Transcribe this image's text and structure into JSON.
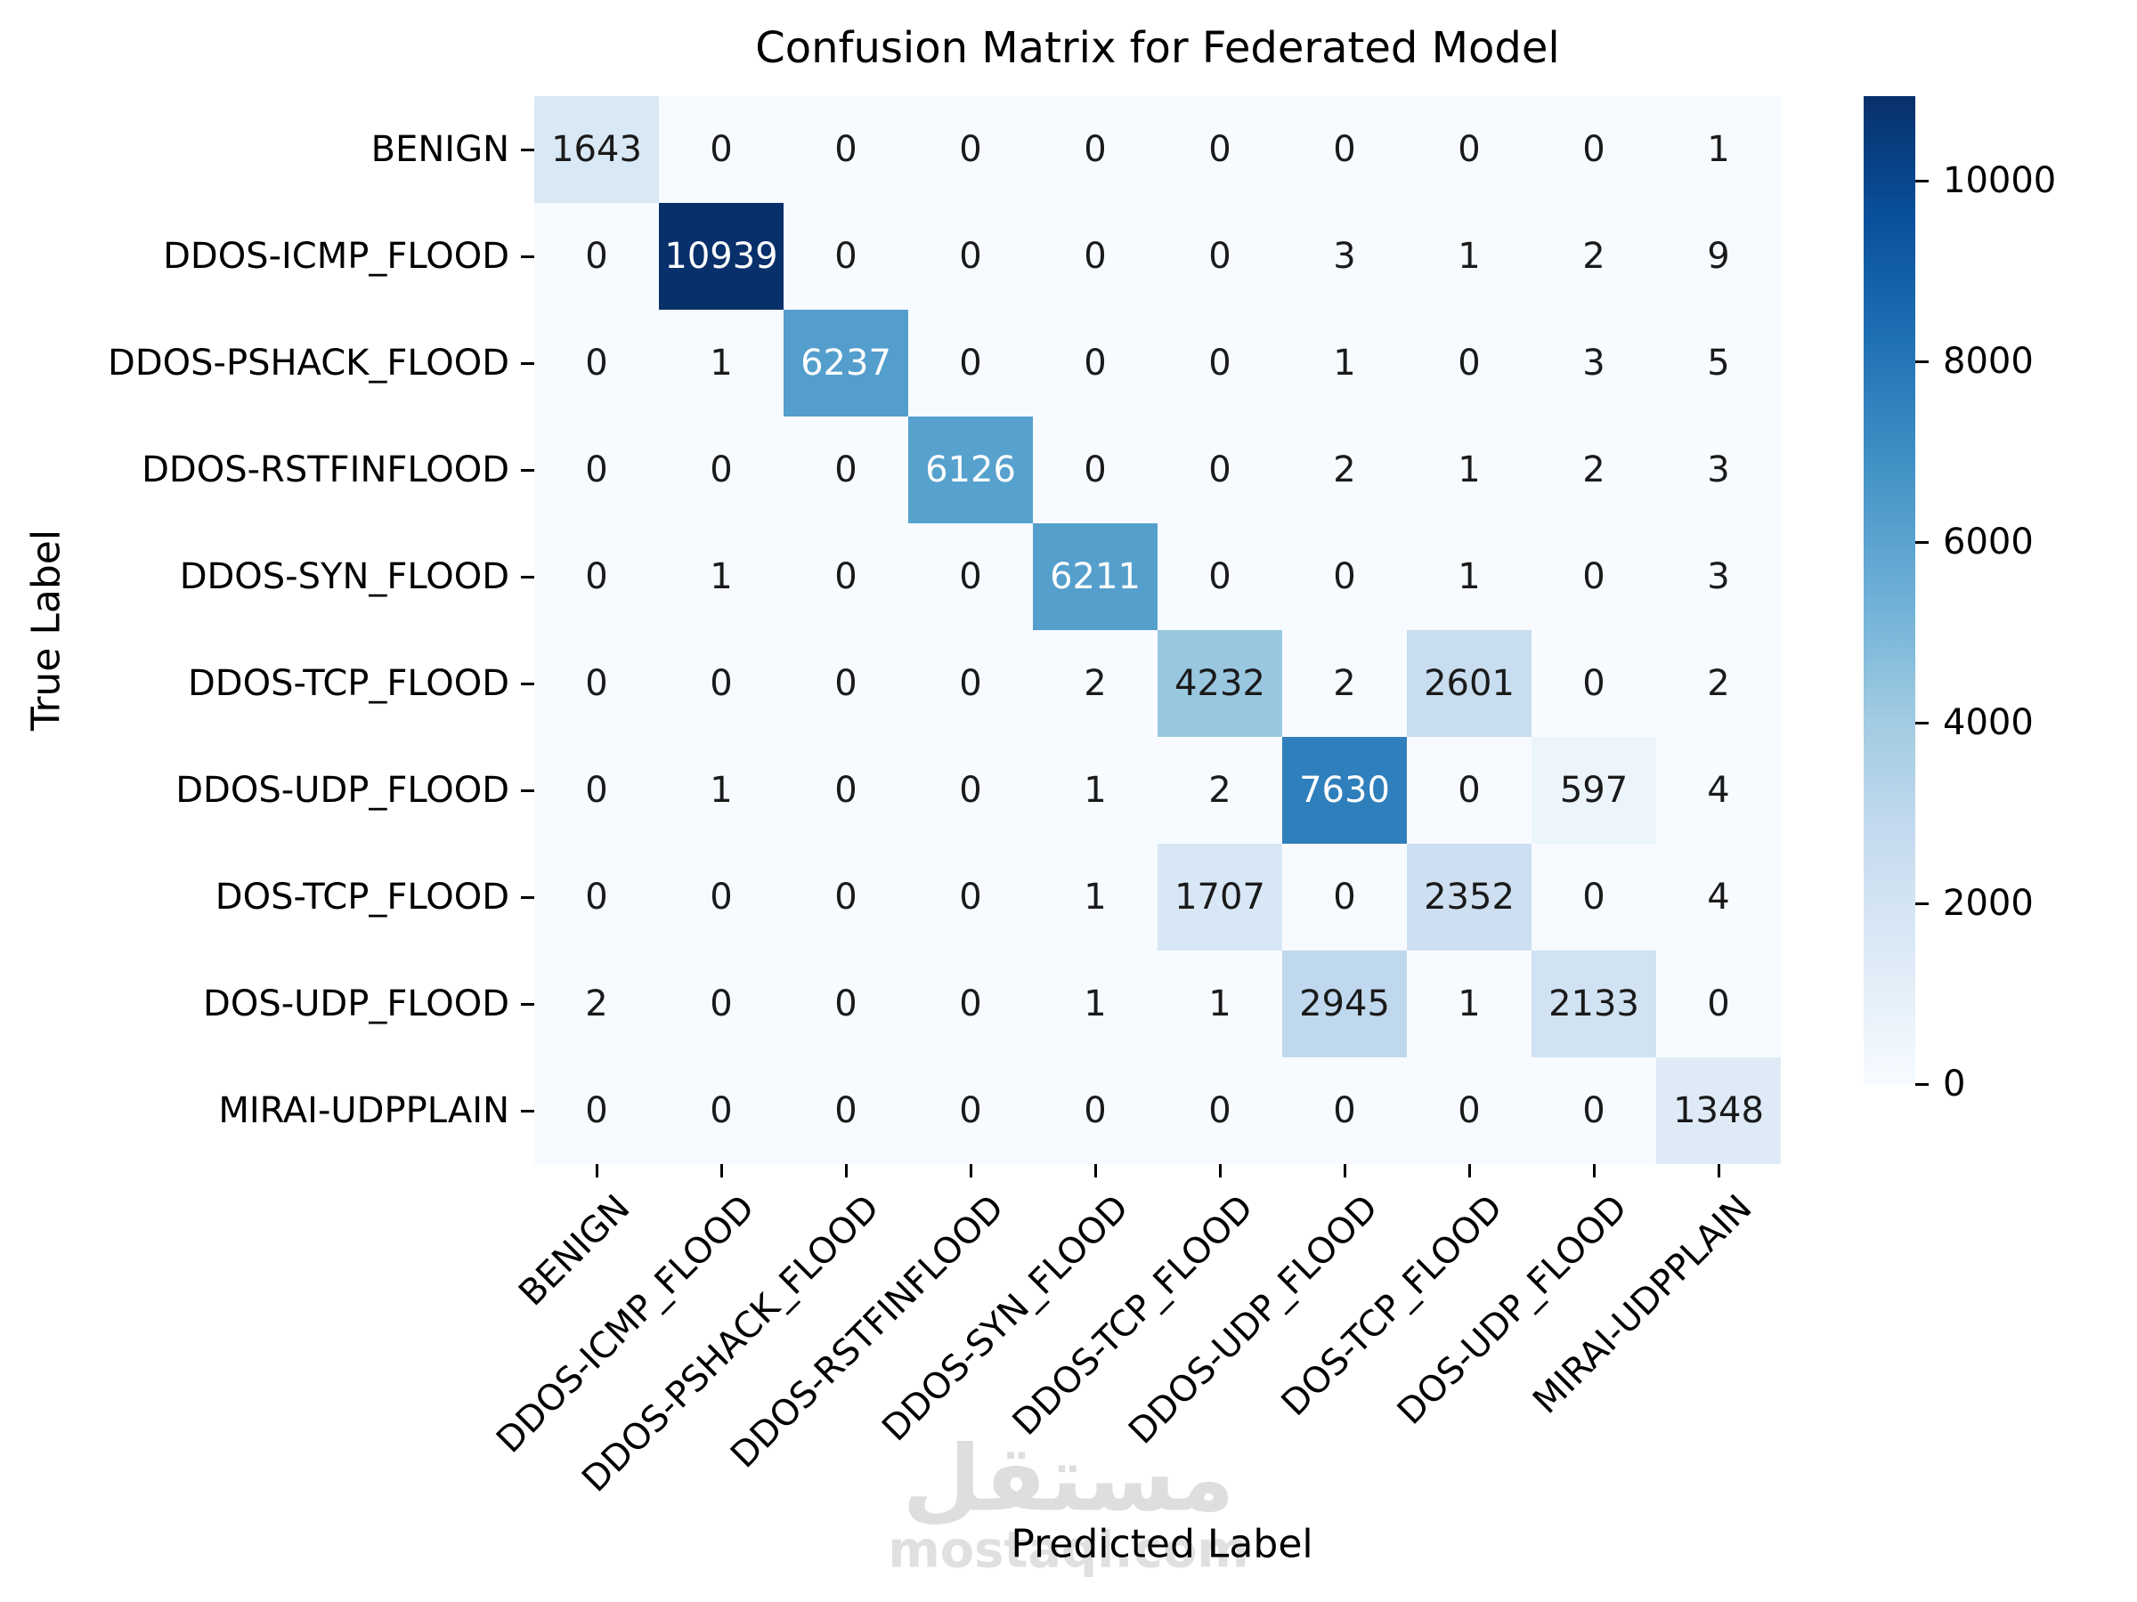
{
  "chart_data": {
    "type": "heatmap",
    "title": "Confusion Matrix for Federated Model",
    "xlabel": "Predicted Label",
    "ylabel": "True Label",
    "categories": [
      "BENIGN",
      "DDOS-ICMP_FLOOD",
      "DDOS-PSHACK_FLOOD",
      "DDOS-RSTFINFLOOD",
      "DDOS-SYN_FLOOD",
      "DDOS-TCP_FLOOD",
      "DDOS-UDP_FLOOD",
      "DOS-TCP_FLOOD",
      "DOS-UDP_FLOOD",
      "MIRAI-UDPPLAIN"
    ],
    "matrix": [
      [
        1643,
        0,
        0,
        0,
        0,
        0,
        0,
        0,
        0,
        1
      ],
      [
        0,
        10939,
        0,
        0,
        0,
        0,
        3,
        1,
        2,
        9
      ],
      [
        0,
        1,
        6237,
        0,
        0,
        0,
        1,
        0,
        3,
        5
      ],
      [
        0,
        0,
        0,
        6126,
        0,
        0,
        2,
        1,
        2,
        3
      ],
      [
        0,
        1,
        0,
        0,
        6211,
        0,
        0,
        1,
        0,
        3
      ],
      [
        0,
        0,
        0,
        0,
        2,
        4232,
        2,
        2601,
        0,
        2
      ],
      [
        0,
        1,
        0,
        0,
        1,
        2,
        7630,
        0,
        597,
        4
      ],
      [
        0,
        0,
        0,
        0,
        1,
        1707,
        0,
        2352,
        0,
        4
      ],
      [
        2,
        0,
        0,
        0,
        1,
        1,
        2945,
        1,
        2133,
        0
      ],
      [
        0,
        0,
        0,
        0,
        0,
        0,
        0,
        0,
        0,
        1348
      ]
    ],
    "vmin": 0,
    "vmax": 10939,
    "colormap": "Blues",
    "colorbar_ticks": [
      10000,
      8000,
      6000,
      4000,
      2000,
      0
    ],
    "colorbar_position": "right",
    "annotated": true,
    "grid": false
  },
  "colors": {
    "cmap_low": "#f7fbff",
    "cmap_high": "#08306b",
    "annotation_dark": "#1a1a1a",
    "annotation_light": "#ffffff",
    "axis_text": "#000000"
  },
  "watermark": {
    "arabic": "مستقل",
    "domain": "mostaql.com"
  }
}
